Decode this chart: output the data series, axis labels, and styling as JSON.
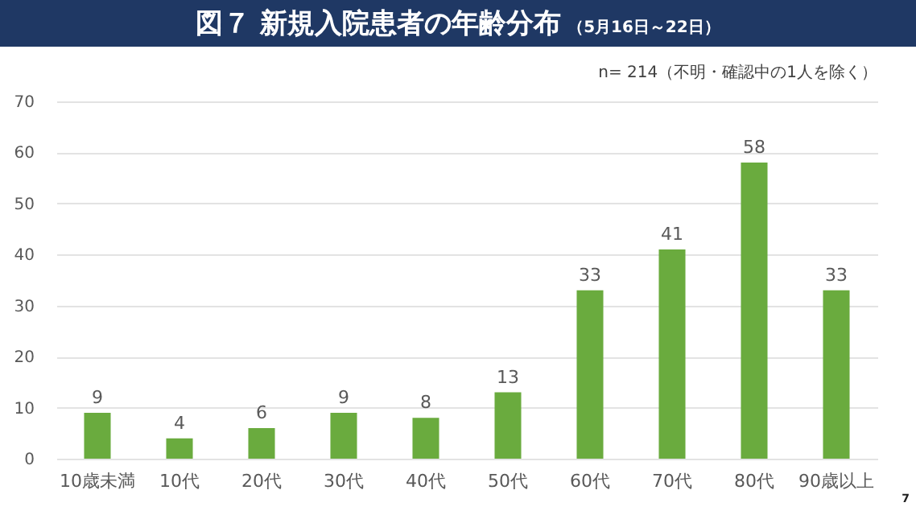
{
  "chart_data": {
    "type": "bar",
    "title": "図７ 新規入院患者の年齢分布",
    "subtitle": "（5月16日～22日）",
    "categories": [
      "10歳未満",
      "10代",
      "20代",
      "30代",
      "40代",
      "50代",
      "60代",
      "70代",
      "80代",
      "90歳以上"
    ],
    "values": [
      9,
      4,
      6,
      9,
      8,
      13,
      33,
      41,
      58,
      33
    ],
    "color": "#6aab3e",
    "ylim": [
      0,
      70
    ],
    "yticks": [
      0,
      10,
      20,
      30,
      40,
      50,
      60,
      70
    ],
    "grid": "y",
    "data_labels": true,
    "annotations": [
      "n= 214（不明・確認中の1人を除く）",
      "7"
    ]
  }
}
